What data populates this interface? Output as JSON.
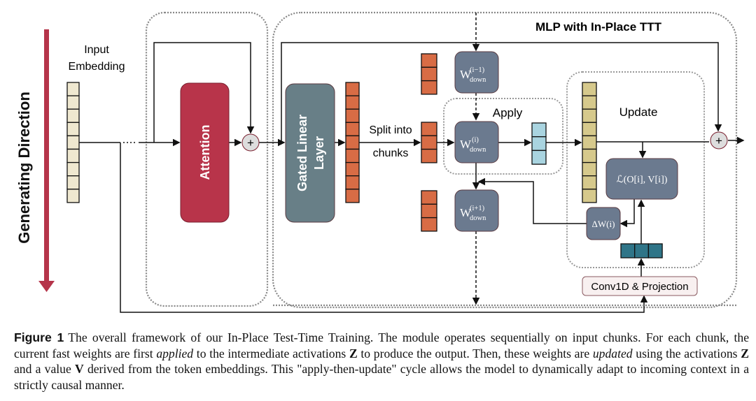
{
  "diagram": {
    "direction_label": "Generating Direction",
    "input_label_1": "Input",
    "input_label_2": "Embedding",
    "attention": "Attention",
    "gated_1": "Gated Linear",
    "gated_2": "Layer",
    "split_1": "Split into",
    "split_2": "chunks",
    "mlp_title": "MLP with In-Place TTT",
    "apply": "Apply",
    "update": "Update",
    "plus": "+",
    "w_base": "W",
    "w_sub": "down",
    "w_prev_sup": "(i−1)",
    "w_cur_sup": "(i)",
    "w_next_sup": "(i+1)",
    "loss": "ℒ(O[i], V[i])",
    "delta_w": "ΔW(i)",
    "conv": "Conv1D & Projection",
    "colors": {
      "attention": "#b8344a",
      "gated": "#687f87",
      "orange": "#d86c45",
      "weight": "#6b7a8f",
      "blue": "#a9d4e0",
      "yellow": "#d6c98c",
      "teal": "#2f7588",
      "embedding": "#efe8d0",
      "arrow": "#b5344a"
    }
  },
  "caption": {
    "label": "Figure 1",
    "p1": "The overall framework of our In-Place Test-Time Training. The module operates sequentially on input chunks. For each chunk, the current fast weights are first ",
    "applied": "applied",
    "p2": " to the intermediate activations ",
    "z1": "Z",
    "p3": " to produce the output. Then, these weights are ",
    "updated": "updated",
    "p4": " using the activations ",
    "z2": "Z",
    "p5": " and a value ",
    "v": "V",
    "p6": " derived from the token embeddings. This \"apply-then-update\" cycle allows the model to dynamically adapt to incoming context in a strictly causal manner."
  }
}
